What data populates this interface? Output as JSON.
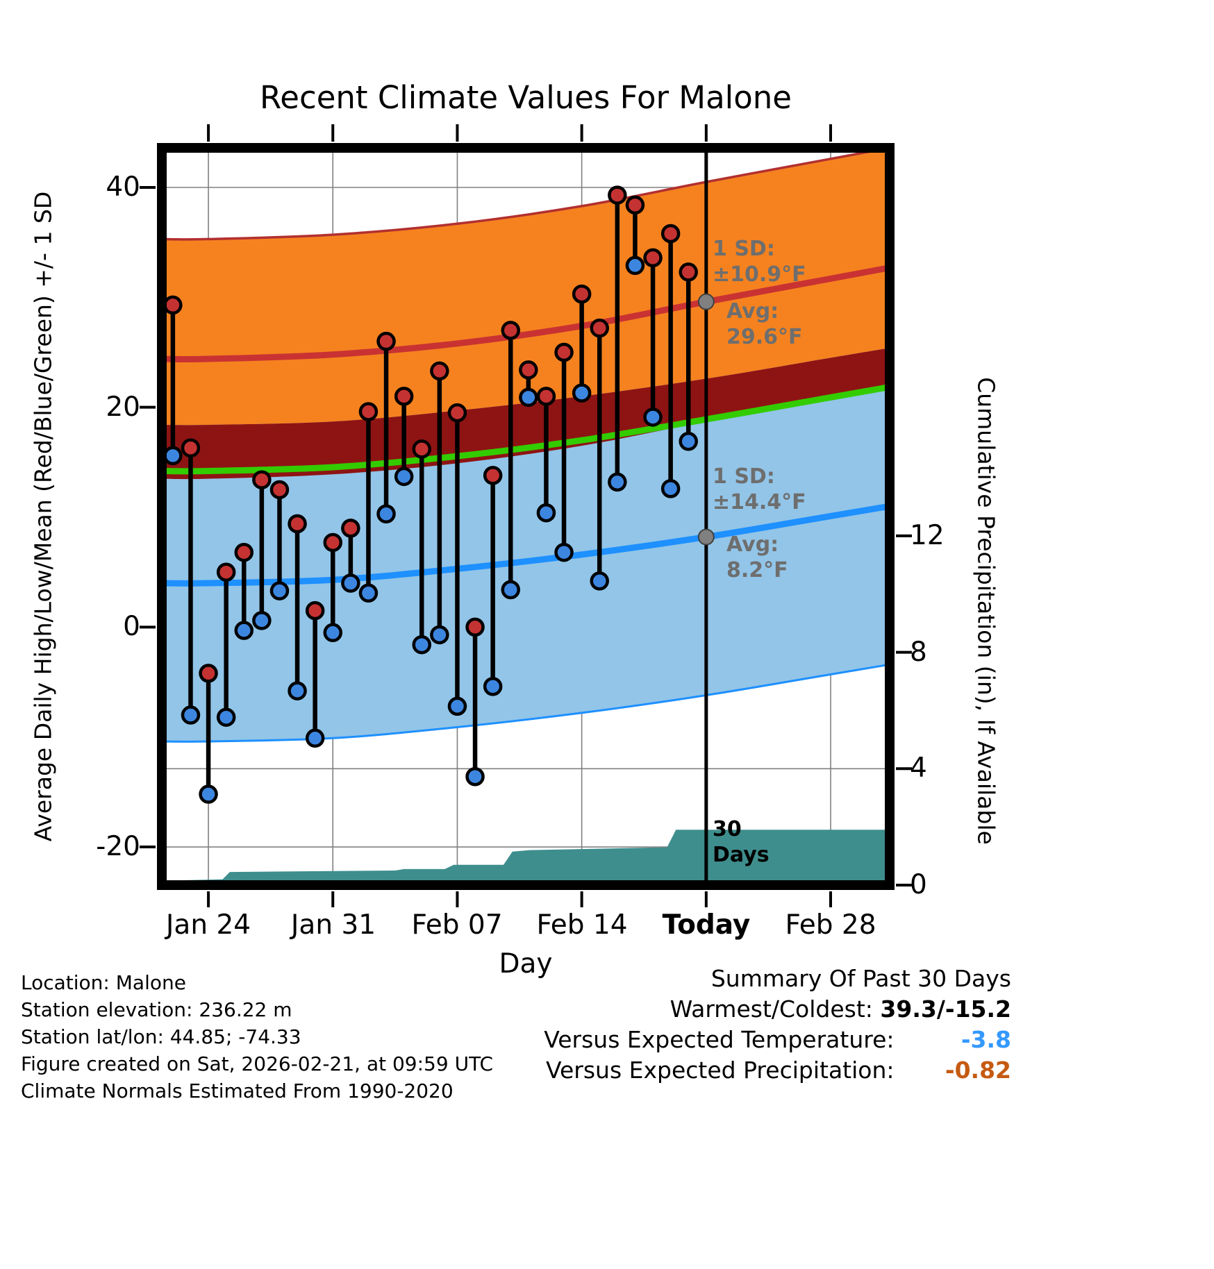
{
  "title": "Recent Climate Values For Malone",
  "axes": {
    "left_label": "Average Daily High/Low/Mean (Red/Blue/Green) +/- 1 SD",
    "right_label": "Cumulative Precipitation (in), If Available",
    "x_label": "Day",
    "left_ticks": [
      "40",
      "20",
      "0",
      "-20"
    ],
    "right_ticks": [
      "12",
      "8",
      "4",
      "0"
    ],
    "x_ticks": [
      "Jan 24",
      "Jan 31",
      "Feb 07",
      "Feb 14",
      "Today",
      "Feb 28"
    ]
  },
  "annotations": {
    "high_sd_label": "1 SD:",
    "high_sd_value": "±10.9°F",
    "high_avg_label": "Avg:",
    "high_avg_value": "29.6°F",
    "low_sd_label": "1 SD:",
    "low_sd_value": "±14.4°F",
    "low_avg_label": "Avg:",
    "low_avg_value": "8.2°F",
    "window_line1": "30",
    "window_line2": "Days"
  },
  "footer_left": [
    "Location: Malone",
    "Station elevation: 236.22 m",
    "Station lat/lon: 44.85; -74.33",
    "Figure created on Sat, 2026-02-21, at 09:59 UTC",
    "Climate Normals Estimated From 1990-2020"
  ],
  "summary": {
    "title": "Summary Of Past 30 Days",
    "rows": [
      {
        "label": "Warmest/Coldest:",
        "value": "39.3/-15.2",
        "color": "#000000"
      },
      {
        "label": "Versus Expected Temperature:",
        "value": "-3.8",
        "color": "#3399FF"
      },
      {
        "label": "Versus Expected Precipitation:",
        "value": "-0.82",
        "color": "#C55A11"
      }
    ]
  },
  "chart_data": {
    "type": "line",
    "title": "Recent Climate Values For Malone",
    "x_axis": {
      "label": "Day",
      "tick_labels": [
        "Jan 24",
        "Jan 31",
        "Feb 07",
        "Feb 14",
        "Today",
        "Feb 28"
      ],
      "tick_positions_days_from_jan24": [
        0,
        7,
        14,
        21,
        28,
        35
      ],
      "range_days_from_jan24": [
        -2.62,
        38.32
      ],
      "today_position": 28
    },
    "y_axis_temp": {
      "label": "Average Daily High/Low/Mean (Red/Blue/Green) +/- 1 SD",
      "ticks": [
        40,
        20,
        0,
        -20
      ],
      "range": [
        -23.47,
        43.6
      ],
      "units": "°F"
    },
    "y_axis_precip": {
      "label": "Cumulative Precipitation (in), If Available",
      "ticks": [
        12,
        8,
        4,
        0
      ],
      "range": [
        0,
        25.33
      ],
      "units": "in"
    },
    "normals": {
      "anchors_days_from_jan24": [
        -2.62,
        0,
        7,
        14,
        21,
        28,
        35,
        38.32
      ],
      "high_avg": [
        24.4,
        24.4,
        24.8,
        25.8,
        27.4,
        29.6,
        31.7,
        32.7
      ],
      "low_avg": [
        4.0,
        4.0,
        4.3,
        5.3,
        6.6,
        8.2,
        10.1,
        11.0
      ],
      "high_sd": 10.9,
      "low_sd": 14.4,
      "today_high_avg": 29.6,
      "today_low_avg": 8.2
    },
    "daily": {
      "start_day_from_jan24": -2,
      "dates": [
        "Jan 22",
        "Jan 23",
        "Jan 24",
        "Jan 25",
        "Jan 26",
        "Jan 27",
        "Jan 28",
        "Jan 29",
        "Jan 30",
        "Jan 31",
        "Feb 01",
        "Feb 02",
        "Feb 03",
        "Feb 04",
        "Feb 05",
        "Feb 06",
        "Feb 07",
        "Feb 08",
        "Feb 09",
        "Feb 10",
        "Feb 11",
        "Feb 12",
        "Feb 13",
        "Feb 14",
        "Feb 15",
        "Feb 16",
        "Feb 17",
        "Feb 18",
        "Feb 19",
        "Feb 20"
      ],
      "high": [
        29.3,
        16.3,
        -4.2,
        5.0,
        6.8,
        13.4,
        12.5,
        9.4,
        1.5,
        7.7,
        9.0,
        19.6,
        26.0,
        21.0,
        16.2,
        23.3,
        19.5,
        0.0,
        13.8,
        27.0,
        23.4,
        21.0,
        25.0,
        30.3,
        27.2,
        39.3,
        38.4,
        33.6,
        35.8,
        32.3
      ],
      "low": [
        15.6,
        -8.0,
        -15.2,
        -8.2,
        -0.3,
        0.6,
        3.3,
        -5.8,
        -10.1,
        -0.5,
        4.0,
        3.1,
        10.3,
        13.7,
        -1.6,
        -0.7,
        -7.2,
        -13.6,
        -5.4,
        3.4,
        20.9,
        10.4,
        6.8,
        21.3,
        4.2,
        13.2,
        32.9,
        19.1,
        12.6,
        16.9
      ]
    },
    "precip_cumulative": {
      "days_from_jan24": [
        -2.62,
        0.8,
        1.2,
        10.5,
        11.0,
        13.3,
        13.8,
        16.6,
        17.1,
        18.0,
        25.8,
        26.3,
        38.32
      ],
      "inches": [
        0.15,
        0.2,
        0.45,
        0.5,
        0.55,
        0.55,
        0.7,
        0.7,
        1.15,
        1.2,
        1.3,
        1.9,
        1.9
      ]
    },
    "colors": {
      "high_band": "#F5821F",
      "high_band_edge": "#B23030",
      "high_avg_line": "#C93232",
      "overlap_band": "#8E1414",
      "mean_line": "#33CC00",
      "low_band": "#92C5E8",
      "low_avg_line": "#1E90FF",
      "low_band_edge": "#1E90FF",
      "high_dot": "#C53232",
      "low_dot": "#3C86E0",
      "precip_fill": "#3F8E8E",
      "today_marker": "#808080",
      "grid": "#808080"
    }
  }
}
